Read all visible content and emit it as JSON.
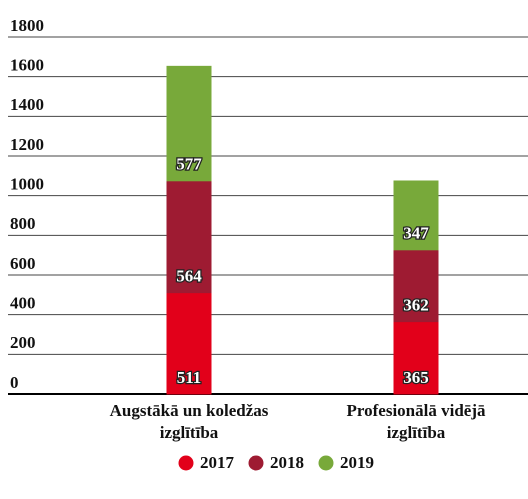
{
  "chart_data": {
    "type": "stacked_bar",
    "categories": [
      "Augstākā un koledžas\nizglītība",
      "Profesionālā vidējā\nizglītība"
    ],
    "series": [
      {
        "name": "2017",
        "color": "#e2001a",
        "values": [
          511,
          365
        ]
      },
      {
        "name": "2018",
        "color": "#9e1b32",
        "values": [
          564,
          362
        ]
      },
      {
        "name": "2019",
        "color": "#78a93a",
        "values": [
          577,
          347
        ]
      }
    ],
    "ylim": [
      0,
      1800
    ],
    "yticks": [
      0,
      200,
      400,
      600,
      800,
      1000,
      1200,
      1400,
      1600,
      1800
    ],
    "grid": true,
    "legend": "bottom"
  }
}
